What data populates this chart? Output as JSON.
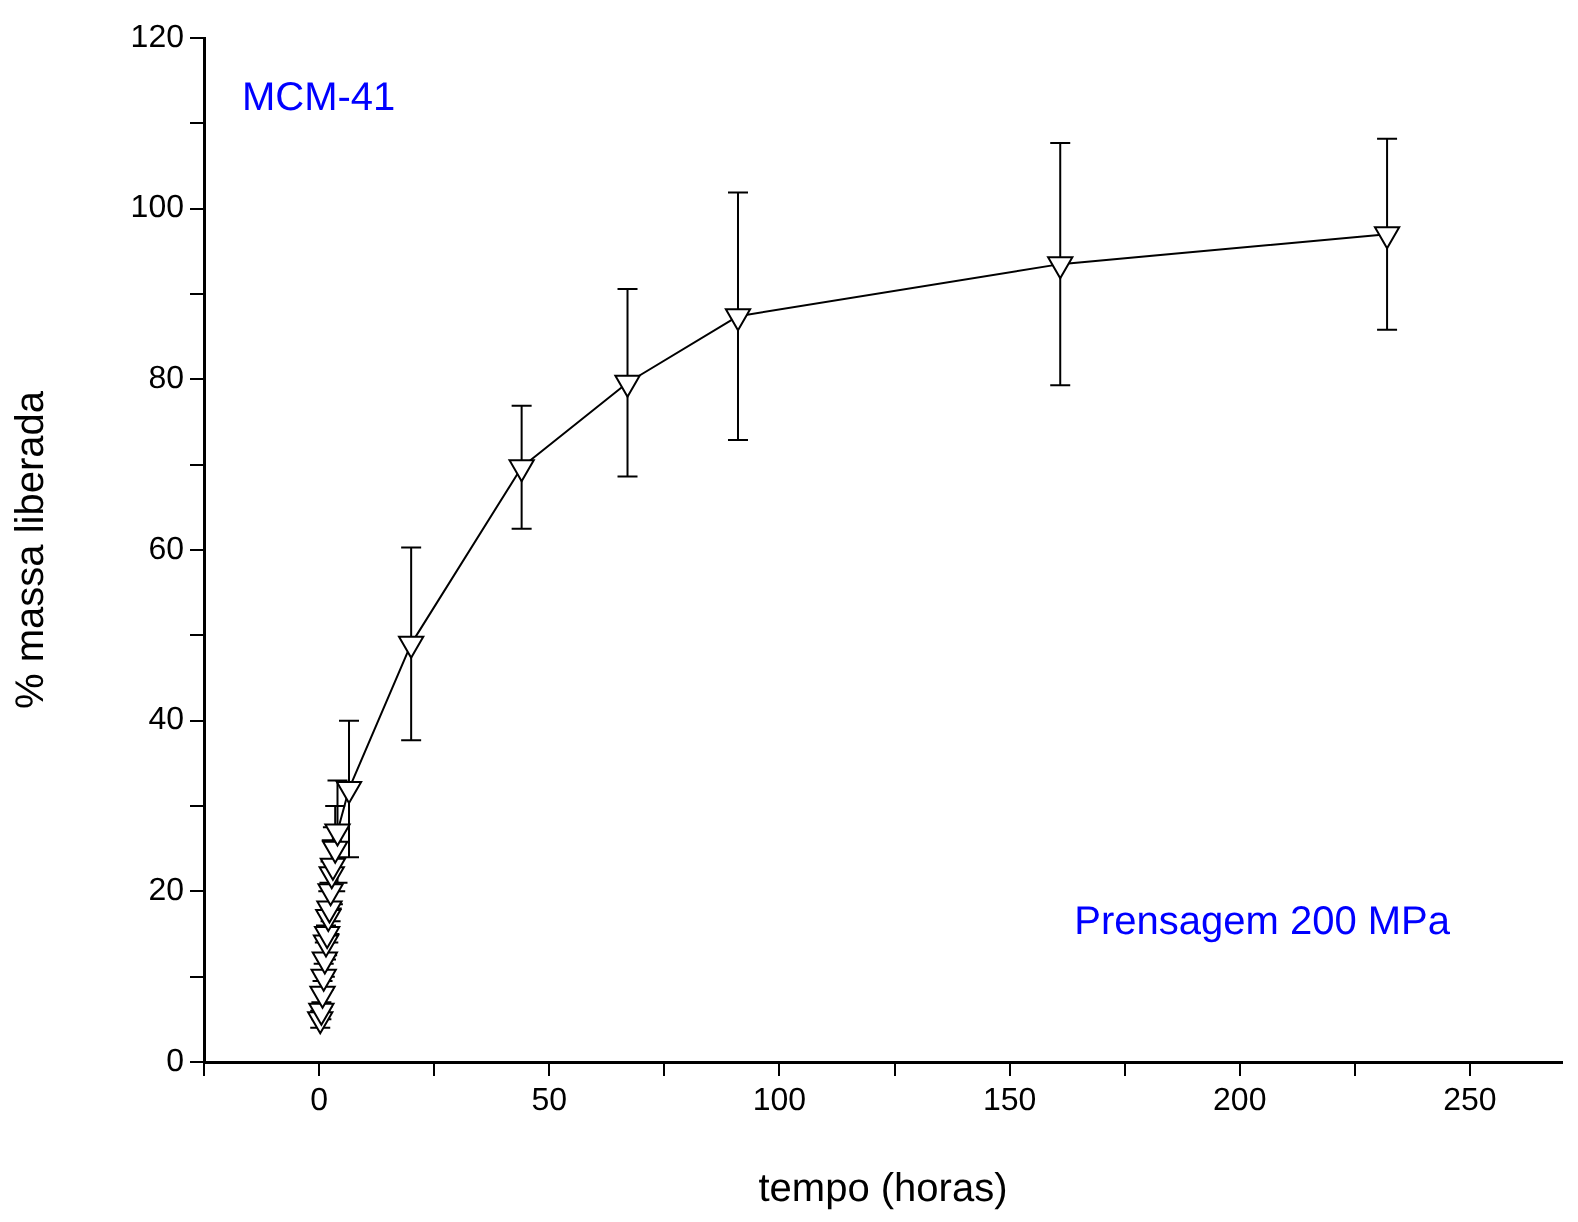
{
  "chart_data": {
    "type": "line",
    "xlabel": "tempo (horas)",
    "ylabel": "% massa liberada",
    "annotations": [
      "MCM-41",
      "Prensagem 200 MPa"
    ],
    "x": [
      0.25,
      0.5,
      0.75,
      1,
      1.25,
      1.5,
      1.75,
      2,
      2.25,
      2.5,
      2.75,
      3,
      3.5,
      4,
      6.5,
      20,
      44,
      67,
      91,
      161,
      232
    ],
    "series": [
      {
        "color": "#000000",
        "values": [
          5,
          6,
          8,
          10,
          12,
          14,
          15,
          17,
          18,
          20,
          22,
          23,
          25,
          27,
          32,
          49,
          69.7,
          79.6,
          87.4,
          93.5,
          97
        ],
        "errors": [
          1,
          1,
          1.5,
          1.5,
          2,
          2,
          2.5,
          3,
          3,
          3.5,
          4,
          4.5,
          5,
          6,
          8,
          11.3,
          7.2,
          11,
          14.5,
          14.2,
          11.2
        ]
      }
    ],
    "xlim": [
      -25,
      270
    ],
    "xticks": [
      {
        "value": -25,
        "label": null
      },
      0,
      {
        "value": 25,
        "label": null
      },
      50,
      {
        "value": 75,
        "label": null
      },
      100,
      {
        "value": 125,
        "label": null
      },
      150,
      {
        "value": 175,
        "label": null
      },
      200,
      {
        "value": 225,
        "label": null
      },
      250
    ],
    "ylim": [
      0,
      120
    ],
    "yticks": [
      0,
      {
        "value": 10,
        "label": null
      },
      20,
      {
        "value": 30,
        "label": null
      },
      40,
      {
        "value": 50,
        "label": null
      },
      60,
      {
        "value": 70,
        "label": null
      },
      80,
      {
        "value": 90,
        "label": null
      },
      100,
      {
        "value": 110,
        "label": null
      },
      120
    ],
    "grid": false,
    "legend": false,
    "marker": "triangle",
    "line_style": "solid"
  }
}
